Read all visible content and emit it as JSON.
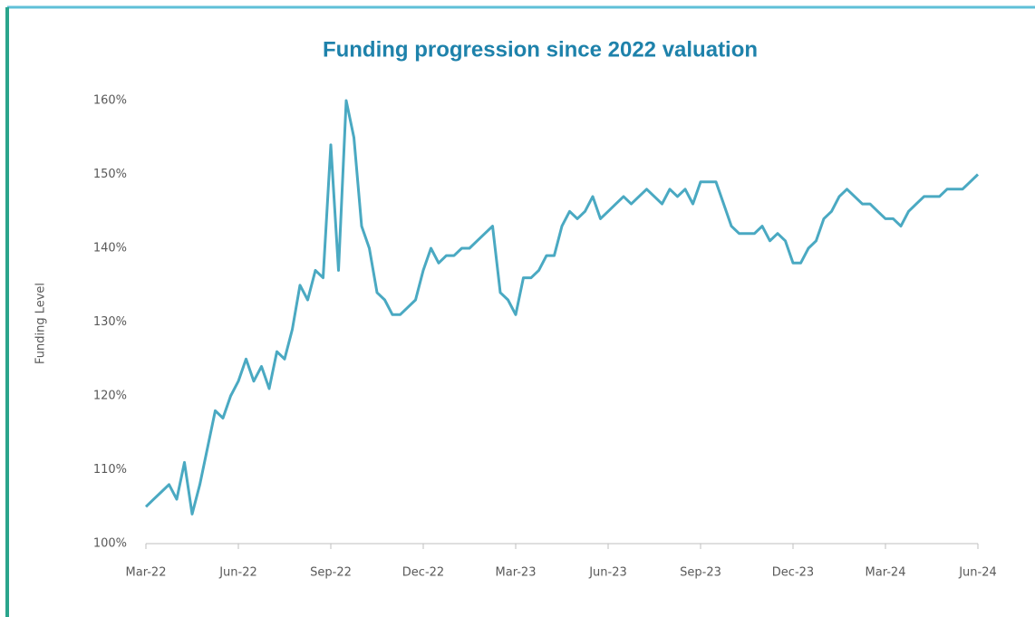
{
  "chart_data": {
    "type": "line",
    "title": "Funding progression since 2022 valuation",
    "y_label": "Funding Level",
    "categories": [
      "Mar-22",
      null,
      null,
      null,
      null,
      null,
      null,
      null,
      null,
      null,
      null,
      null,
      "Jun-22",
      null,
      null,
      null,
      null,
      null,
      null,
      null,
      null,
      null,
      null,
      null,
      "Sep-22",
      null,
      null,
      null,
      null,
      null,
      null,
      null,
      null,
      null,
      null,
      null,
      "Dec-22",
      null,
      null,
      null,
      null,
      null,
      null,
      null,
      null,
      null,
      null,
      null,
      "Mar-23",
      null,
      null,
      null,
      null,
      null,
      null,
      null,
      null,
      null,
      null,
      null,
      "Jun-23",
      null,
      null,
      null,
      null,
      null,
      null,
      null,
      null,
      null,
      null,
      null,
      "Sep-23",
      null,
      null,
      null,
      null,
      null,
      null,
      null,
      null,
      null,
      null,
      null,
      "Dec-23",
      null,
      null,
      null,
      null,
      null,
      null,
      null,
      null,
      null,
      null,
      null,
      "Mar-24",
      null,
      null,
      null,
      null,
      null,
      null,
      null,
      null,
      null,
      null,
      null,
      "Jun-24"
    ],
    "values": [
      105,
      106,
      107,
      108,
      106,
      111,
      104,
      108,
      113,
      118,
      117,
      120,
      122,
      125,
      122,
      124,
      121,
      126,
      125,
      129,
      135,
      133,
      137,
      136,
      154,
      137,
      160,
      155,
      143,
      140,
      134,
      133,
      131,
      131,
      132,
      133,
      137,
      140,
      138,
      139,
      139,
      140,
      140,
      141,
      142,
      143,
      134,
      133,
      131,
      136,
      136,
      137,
      139,
      139,
      143,
      145,
      144,
      145,
      147,
      144,
      145,
      146,
      147,
      146,
      147,
      148,
      147,
      146,
      148,
      147,
      148,
      146,
      149,
      149,
      149,
      146,
      143,
      142,
      142,
      142,
      143,
      141,
      142,
      141,
      138,
      138,
      140,
      141,
      144,
      145,
      147,
      148,
      147,
      146,
      146,
      145,
      144,
      144,
      143,
      145,
      146,
      147,
      147,
      147,
      148,
      148,
      148,
      149,
      150
    ],
    "color": "#4aa9c2",
    "ylim": [
      100,
      160
    ],
    "yticks": [
      {
        "value": 100,
        "label": "100%"
      },
      {
        "value": 110,
        "label": "110%"
      },
      {
        "value": 120,
        "label": "120%"
      },
      {
        "value": 130,
        "label": "130%"
      },
      {
        "value": 140,
        "label": "140%"
      },
      {
        "value": 150,
        "label": "150%"
      },
      {
        "value": 160,
        "label": "160%"
      }
    ],
    "grid": false
  }
}
